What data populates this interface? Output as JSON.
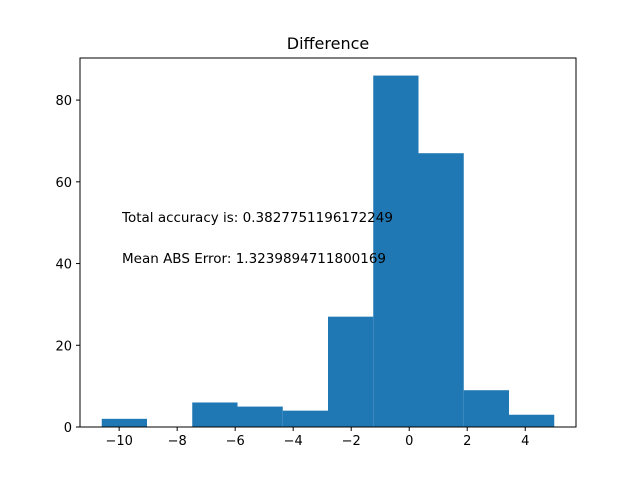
{
  "chart_data": {
    "type": "bar",
    "title": "Difference",
    "xlabel": "",
    "ylabel": "",
    "xlim": [
      -11.35,
      5.75
    ],
    "ylim": [
      0,
      90.3
    ],
    "xticks": [
      -10,
      -8,
      -6,
      -4,
      -2,
      0,
      2,
      4
    ],
    "yticks": [
      0,
      20,
      40,
      60,
      80
    ],
    "xtick_labels": [
      "−10",
      "−8",
      "−6",
      "−4",
      "−2",
      "0",
      "2",
      "4"
    ],
    "ytick_labels": [
      "0",
      "20",
      "40",
      "60",
      "80"
    ],
    "bin_edges": [
      -10.6,
      -9.04,
      -7.48,
      -5.92,
      -4.36,
      -2.8,
      -1.24,
      0.32,
      1.88,
      3.44,
      5.0
    ],
    "values": [
      2,
      0,
      6,
      5,
      4,
      27,
      86,
      67,
      9,
      3
    ],
    "bar_color": "#1f77b4",
    "grid": false,
    "annotations": [
      "Total accuracy is: 0.3827751196172249",
      "Mean ABS Error: 1.3239894711800169"
    ]
  }
}
